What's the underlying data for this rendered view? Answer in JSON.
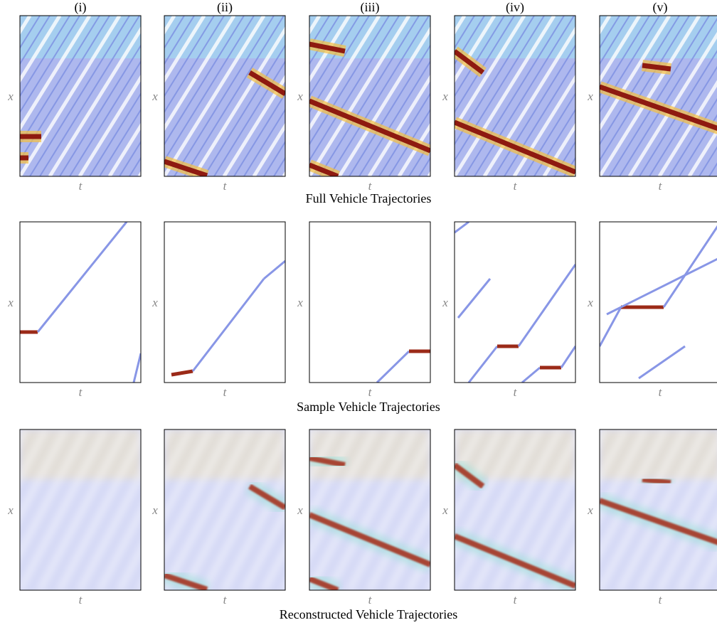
{
  "columns": [
    "(i)",
    "(ii)",
    "(iii)",
    "(iv)",
    "(v)"
  ],
  "rows": [
    {
      "title": "Full Vehicle Trajectories"
    },
    {
      "title": "Sample Vehicle Trajectories"
    },
    {
      "title": "Reconstructed Vehicle Trajectories"
    }
  ],
  "axes": {
    "x": "x",
    "t": "t"
  }
}
